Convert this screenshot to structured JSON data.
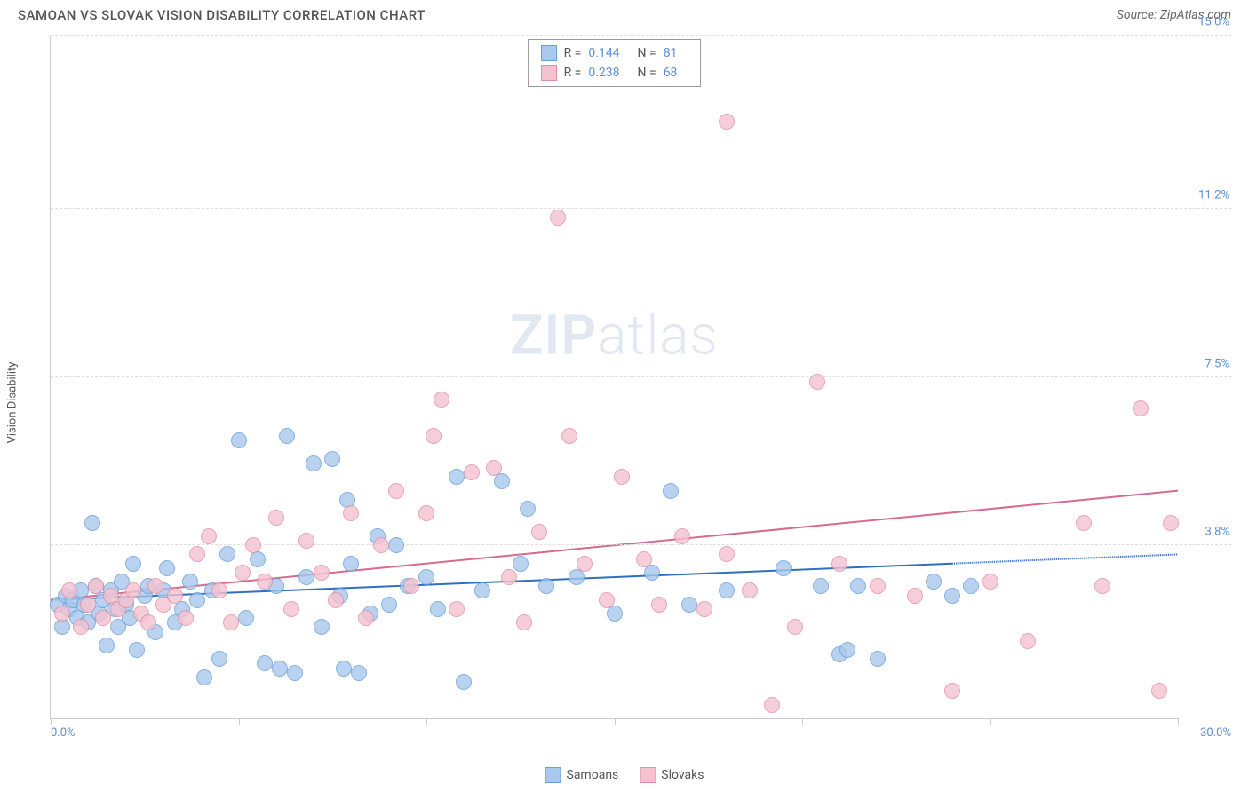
{
  "header": {
    "title": "SAMOAN VS SLOVAK VISION DISABILITY CORRELATION CHART",
    "source": "Source: ZipAtlas.com"
  },
  "watermark": {
    "zip": "ZIP",
    "atlas": "atlas"
  },
  "chart": {
    "type": "scatter",
    "y_label": "Vision Disability",
    "background_color": "#ffffff",
    "grid_color": "#dddddd",
    "axis_color": "#cccccc",
    "tick_label_color": "#5b8fd6",
    "xlim": [
      0.0,
      30.0
    ],
    "ylim": [
      0.0,
      15.0
    ],
    "x_ticks_major": [
      0.0,
      5.0,
      10.0,
      15.0,
      20.0,
      25.0,
      30.0
    ],
    "x_tick_labels": {
      "min": "0.0%",
      "max": "30.0%"
    },
    "y_gridlines": [
      3.8,
      7.5,
      11.2,
      15.0
    ],
    "y_tick_labels": [
      "3.8%",
      "7.5%",
      "11.2%",
      "15.0%"
    ],
    "marker_radius": 9,
    "marker_border_width": 1.5,
    "marker_fill_opacity": 0.35,
    "series": [
      {
        "name": "Samoans",
        "color_fill": "#a8c8ec",
        "color_border": "#6a9fd8",
        "trend_color": "#2f6fc0",
        "R": "0.144",
        "N": "81",
        "trend": {
          "y_at_x0": 2.6,
          "y_at_x30": 3.6,
          "solid_to_x": 24.0
        },
        "points": [
          [
            0.2,
            2.5
          ],
          [
            0.3,
            2.0
          ],
          [
            0.4,
            2.7
          ],
          [
            0.5,
            2.4
          ],
          [
            0.6,
            2.6
          ],
          [
            0.7,
            2.2
          ],
          [
            0.8,
            2.8
          ],
          [
            0.9,
            2.5
          ],
          [
            1.0,
            2.1
          ],
          [
            1.1,
            4.3
          ],
          [
            1.2,
            2.9
          ],
          [
            1.3,
            2.3
          ],
          [
            1.4,
            2.6
          ],
          [
            1.5,
            1.6
          ],
          [
            1.6,
            2.8
          ],
          [
            1.7,
            2.4
          ],
          [
            1.8,
            2.0
          ],
          [
            1.9,
            3.0
          ],
          [
            2.0,
            2.5
          ],
          [
            2.1,
            2.2
          ],
          [
            2.2,
            3.4
          ],
          [
            2.3,
            1.5
          ],
          [
            2.5,
            2.7
          ],
          [
            2.6,
            2.9
          ],
          [
            2.8,
            1.9
          ],
          [
            3.0,
            2.8
          ],
          [
            3.1,
            3.3
          ],
          [
            3.3,
            2.1
          ],
          [
            3.5,
            2.4
          ],
          [
            3.7,
            3.0
          ],
          [
            3.9,
            2.6
          ],
          [
            4.1,
            0.9
          ],
          [
            4.3,
            2.8
          ],
          [
            4.5,
            1.3
          ],
          [
            4.7,
            3.6
          ],
          [
            5.0,
            6.1
          ],
          [
            5.2,
            2.2
          ],
          [
            5.5,
            3.5
          ],
          [
            5.7,
            1.2
          ],
          [
            6.0,
            2.9
          ],
          [
            6.1,
            1.1
          ],
          [
            6.3,
            6.2
          ],
          [
            6.5,
            1.0
          ],
          [
            6.8,
            3.1
          ],
          [
            7.0,
            5.6
          ],
          [
            7.2,
            2.0
          ],
          [
            7.5,
            5.7
          ],
          [
            7.7,
            2.7
          ],
          [
            7.8,
            1.1
          ],
          [
            7.9,
            4.8
          ],
          [
            8.0,
            3.4
          ],
          [
            8.2,
            1.0
          ],
          [
            8.5,
            2.3
          ],
          [
            8.7,
            4.0
          ],
          [
            9.0,
            2.5
          ],
          [
            9.2,
            3.8
          ],
          [
            9.5,
            2.9
          ],
          [
            10.0,
            3.1
          ],
          [
            10.3,
            2.4
          ],
          [
            10.8,
            5.3
          ],
          [
            11.0,
            0.8
          ],
          [
            11.5,
            2.8
          ],
          [
            12.0,
            5.2
          ],
          [
            12.5,
            3.4
          ],
          [
            12.7,
            4.6
          ],
          [
            13.2,
            2.9
          ],
          [
            14.0,
            3.1
          ],
          [
            15.0,
            2.3
          ],
          [
            16.0,
            3.2
          ],
          [
            16.5,
            5.0
          ],
          [
            17.0,
            2.5
          ],
          [
            18.0,
            2.8
          ],
          [
            19.5,
            3.3
          ],
          [
            20.5,
            2.9
          ],
          [
            21.0,
            1.4
          ],
          [
            21.2,
            1.5
          ],
          [
            21.5,
            2.9
          ],
          [
            22.0,
            1.3
          ],
          [
            23.5,
            3.0
          ],
          [
            24.0,
            2.7
          ],
          [
            24.5,
            2.9
          ]
        ]
      },
      {
        "name": "Slovaks",
        "color_fill": "#f5c2d0",
        "color_border": "#e08fa8",
        "trend_color": "#d86a8f",
        "R": "0.238",
        "N": "68",
        "trend": {
          "y_at_x0": 2.6,
          "y_at_x30": 5.0,
          "solid_to_x": 30.0
        },
        "points": [
          [
            0.3,
            2.3
          ],
          [
            0.5,
            2.8
          ],
          [
            0.8,
            2.0
          ],
          [
            1.0,
            2.5
          ],
          [
            1.2,
            2.9
          ],
          [
            1.4,
            2.2
          ],
          [
            1.6,
            2.7
          ],
          [
            1.8,
            2.4
          ],
          [
            2.0,
            2.6
          ],
          [
            2.2,
            2.8
          ],
          [
            2.4,
            2.3
          ],
          [
            2.6,
            2.1
          ],
          [
            2.8,
            2.9
          ],
          [
            3.0,
            2.5
          ],
          [
            3.3,
            2.7
          ],
          [
            3.6,
            2.2
          ],
          [
            3.9,
            3.6
          ],
          [
            4.2,
            4.0
          ],
          [
            4.5,
            2.8
          ],
          [
            4.8,
            2.1
          ],
          [
            5.1,
            3.2
          ],
          [
            5.4,
            3.8
          ],
          [
            5.7,
            3.0
          ],
          [
            6.0,
            4.4
          ],
          [
            6.4,
            2.4
          ],
          [
            6.8,
            3.9
          ],
          [
            7.2,
            3.2
          ],
          [
            7.6,
            2.6
          ],
          [
            8.0,
            4.5
          ],
          [
            8.4,
            2.2
          ],
          [
            8.8,
            3.8
          ],
          [
            9.2,
            5.0
          ],
          [
            9.6,
            2.9
          ],
          [
            10.0,
            4.5
          ],
          [
            10.2,
            6.2
          ],
          [
            10.4,
            7.0
          ],
          [
            10.8,
            2.4
          ],
          [
            11.2,
            5.4
          ],
          [
            11.8,
            5.5
          ],
          [
            12.2,
            3.1
          ],
          [
            12.6,
            2.1
          ],
          [
            13.0,
            4.1
          ],
          [
            13.5,
            11.0
          ],
          [
            13.8,
            6.2
          ],
          [
            14.2,
            3.4
          ],
          [
            14.8,
            2.6
          ],
          [
            15.2,
            5.3
          ],
          [
            15.8,
            3.5
          ],
          [
            16.2,
            2.5
          ],
          [
            16.8,
            4.0
          ],
          [
            17.4,
            2.4
          ],
          [
            18.0,
            3.6
          ],
          [
            18.0,
            13.1
          ],
          [
            18.6,
            2.8
          ],
          [
            19.2,
            0.3
          ],
          [
            19.8,
            2.0
          ],
          [
            20.4,
            7.4
          ],
          [
            21.0,
            3.4
          ],
          [
            22.0,
            2.9
          ],
          [
            23.0,
            2.7
          ],
          [
            24.0,
            0.6
          ],
          [
            25.0,
            3.0
          ],
          [
            26.0,
            1.7
          ],
          [
            27.5,
            4.3
          ],
          [
            28.0,
            2.9
          ],
          [
            29.0,
            6.8
          ],
          [
            29.8,
            4.3
          ],
          [
            29.5,
            0.6
          ]
        ]
      }
    ]
  },
  "legend": {
    "series1": "Samoans",
    "series2": "Slovaks"
  },
  "stats_labels": {
    "R": "R =",
    "N": "N ="
  }
}
